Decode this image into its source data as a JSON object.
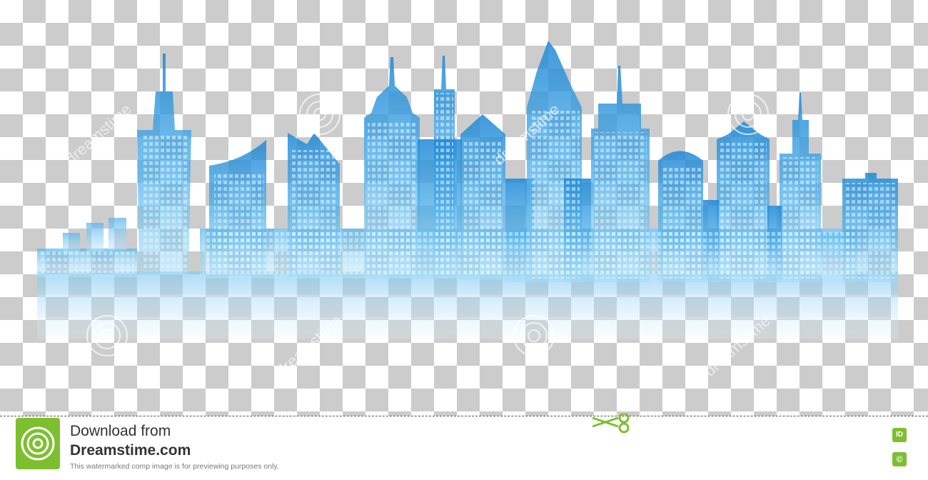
{
  "footer": {
    "line1": "Download from",
    "line2": "Dreamstime.com",
    "note": "This watermarked comp image is for previewing purposes only.",
    "badge_id": "ID",
    "badge_copyright": "©"
  },
  "watermark": {
    "text": "dreamstime",
    "symbol": "©"
  },
  "icons": {
    "logo": "dreamstime-spiral-logo-icon",
    "scissors": "scissors-icon",
    "id": "id-badge-icon",
    "copyright": "copyright-icon"
  },
  "colors": {
    "skyline_dark": "#1e88d4",
    "skyline_mid": "#4fb0ea",
    "skyline_light": "#a8dcf6",
    "checker": "#cccccc",
    "brand_green": "#7dbf2e"
  }
}
